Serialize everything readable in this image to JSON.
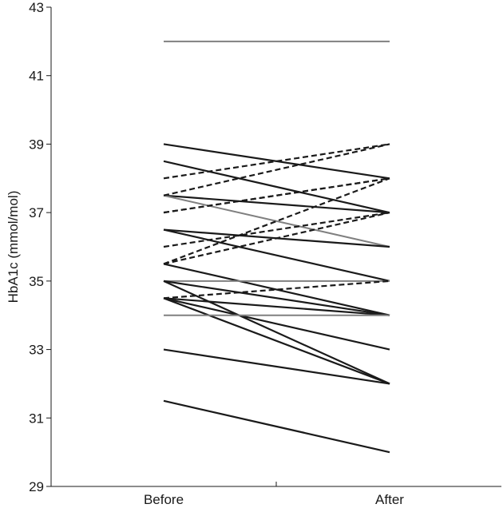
{
  "chart_data": {
    "type": "line",
    "title": "",
    "xlabel": "",
    "ylabel": "HbA1c (mmol/mol)",
    "categories": [
      "Before",
      "After"
    ],
    "ylim": [
      29,
      43
    ],
    "yticks": [
      29,
      31,
      33,
      35,
      37,
      39,
      41,
      43
    ],
    "grid": false,
    "legend": "none",
    "style_colors": {
      "solid": "#1a1a1a",
      "dashed": "#1a1a1a",
      "gray": "#808080"
    },
    "series": [
      {
        "values": [
          42,
          42
        ],
        "style": "gray"
      },
      {
        "values": [
          39,
          38
        ],
        "style": "solid"
      },
      {
        "values": [
          38.5,
          37
        ],
        "style": "solid"
      },
      {
        "values": [
          37.5,
          37
        ],
        "style": "solid"
      },
      {
        "values": [
          37.5,
          36
        ],
        "style": "gray"
      },
      {
        "values": [
          36.5,
          36
        ],
        "style": "solid"
      },
      {
        "values": [
          36.5,
          35
        ],
        "style": "solid"
      },
      {
        "values": [
          35.5,
          34
        ],
        "style": "solid"
      },
      {
        "values": [
          35,
          35
        ],
        "style": "gray"
      },
      {
        "values": [
          35,
          34
        ],
        "style": "solid"
      },
      {
        "values": [
          35,
          32
        ],
        "style": "solid"
      },
      {
        "values": [
          34.5,
          34
        ],
        "style": "solid"
      },
      {
        "values": [
          34.5,
          33
        ],
        "style": "solid"
      },
      {
        "values": [
          34.5,
          32
        ],
        "style": "solid"
      },
      {
        "values": [
          34,
          34
        ],
        "style": "gray"
      },
      {
        "values": [
          33,
          32
        ],
        "style": "solid"
      },
      {
        "values": [
          31.5,
          30
        ],
        "style": "solid"
      },
      {
        "values": [
          38,
          39
        ],
        "style": "dashed"
      },
      {
        "values": [
          37.5,
          39
        ],
        "style": "dashed"
      },
      {
        "values": [
          37,
          38
        ],
        "style": "dashed"
      },
      {
        "values": [
          37,
          38
        ],
        "style": "dashed"
      },
      {
        "values": [
          36,
          37
        ],
        "style": "dashed"
      },
      {
        "values": [
          35.5,
          37
        ],
        "style": "dashed"
      },
      {
        "values": [
          35.5,
          38
        ],
        "style": "dashed"
      },
      {
        "values": [
          34.5,
          35
        ],
        "style": "dashed"
      }
    ]
  }
}
